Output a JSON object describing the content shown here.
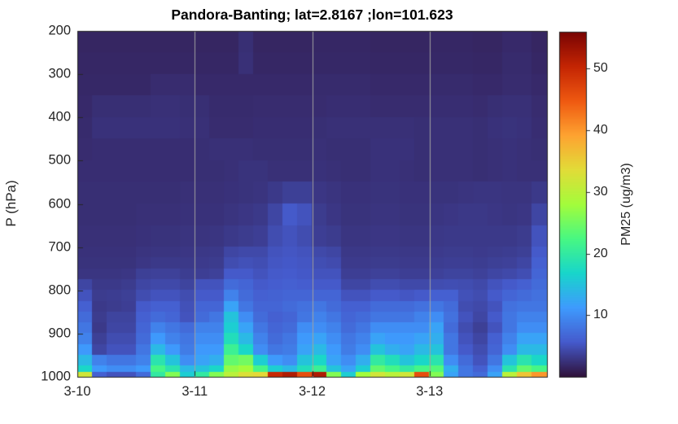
{
  "figure": {
    "background": "#ffffff",
    "text_color": "#262626",
    "axis_color": "#262626",
    "grid_line_color": "#a0a0a0"
  },
  "chart_data": {
    "type": "heatmap",
    "title": "Pandora-Banting; lat=2.8167 ;lon=101.623",
    "xlabel": "",
    "ylabel": "P (hPa)",
    "y_ticks": [
      200,
      300,
      400,
      500,
      600,
      700,
      800,
      900,
      1000
    ],
    "ylim": [
      200,
      1000
    ],
    "y_direction": "pressure-increasing-downward",
    "x_tick_labels": [
      "3-10",
      "3-11",
      "3-12",
      "3-13"
    ],
    "x_domain_days": 4,
    "time_axis": {
      "start": "3-10 00:00",
      "step_hours": 3,
      "columns": 32
    },
    "grid": {
      "vertical_day_lines": [
        "3-11",
        "3-12",
        "3-13"
      ]
    },
    "colormap": "turbo",
    "clim": [
      0,
      56
    ],
    "colorbar": {
      "label": "PM25 (ug/m3)",
      "ticks": [
        10,
        20,
        30,
        40,
        50
      ]
    },
    "pressure_row_bounds": [
      200,
      250,
      300,
      350,
      400,
      450,
      500,
      550,
      600,
      650,
      700,
      725,
      750,
      775,
      800,
      825,
      850,
      875,
      900,
      925,
      950,
      975,
      990,
      1000
    ],
    "values_rows_top_to_bottom": [
      [
        1.5,
        1.5,
        1.5,
        1.5,
        1.5,
        1.5,
        1.5,
        1.5,
        1.5,
        1.5,
        1.5,
        2.2,
        1.5,
        1.5,
        1.5,
        1.5,
        1.6,
        1.6,
        1.6,
        1.6,
        1.5,
        1.5,
        1.5,
        1.5,
        1.6,
        1.6,
        1.6,
        1.5,
        1.5,
        1.8,
        1.8,
        1.5
      ],
      [
        1.6,
        1.6,
        1.6,
        1.6,
        1.6,
        1.6,
        1.6,
        1.6,
        1.6,
        1.6,
        1.6,
        2.3,
        1.6,
        1.6,
        1.6,
        1.6,
        1.7,
        1.7,
        1.7,
        1.7,
        1.6,
        1.6,
        1.6,
        1.6,
        1.7,
        1.7,
        1.7,
        1.6,
        1.6,
        1.9,
        1.9,
        1.6
      ],
      [
        1.7,
        1.7,
        1.7,
        1.7,
        1.7,
        2.0,
        2.0,
        2.0,
        1.8,
        1.8,
        1.8,
        1.8,
        1.8,
        1.8,
        1.8,
        1.8,
        1.9,
        1.9,
        1.9,
        1.9,
        1.8,
        1.8,
        1.8,
        1.8,
        1.9,
        1.9,
        1.9,
        1.8,
        1.8,
        2.0,
        2.0,
        1.8
      ],
      [
        1.8,
        2.2,
        2.2,
        2.2,
        2.2,
        2.3,
        2.3,
        2.2,
        2.2,
        1.9,
        1.9,
        1.9,
        2.0,
        2.0,
        2.0,
        2.0,
        2.0,
        2.1,
        2.1,
        2.1,
        2.0,
        2.0,
        2.0,
        2.0,
        2.1,
        2.1,
        2.1,
        2.0,
        2.2,
        2.3,
        2.3,
        2.0
      ],
      [
        1.9,
        2.4,
        2.4,
        2.4,
        2.4,
        2.4,
        2.4,
        2.3,
        2.3,
        2.0,
        2.0,
        2.0,
        2.1,
        2.1,
        2.1,
        2.1,
        2.2,
        2.3,
        2.3,
        2.3,
        2.3,
        2.3,
        2.3,
        2.2,
        2.3,
        2.3,
        2.3,
        2.2,
        2.4,
        2.5,
        2.4,
        2.1
      ],
      [
        2.0,
        2.1,
        2.1,
        2.1,
        2.1,
        2.1,
        2.1,
        2.1,
        2.2,
        2.3,
        2.3,
        2.3,
        2.2,
        2.2,
        2.2,
        2.2,
        2.3,
        2.2,
        2.2,
        2.2,
        2.4,
        2.4,
        2.4,
        2.2,
        2.3,
        2.3,
        2.3,
        2.2,
        2.3,
        2.4,
        2.3,
        2.2
      ],
      [
        2.1,
        2.1,
        2.1,
        2.1,
        2.1,
        2.1,
        2.1,
        2.1,
        2.2,
        2.2,
        2.3,
        2.5,
        2.5,
        2.3,
        2.3,
        2.3,
        2.4,
        2.3,
        2.2,
        2.2,
        2.4,
        2.4,
        2.3,
        2.2,
        2.3,
        2.3,
        2.3,
        2.2,
        2.3,
        2.4,
        2.3,
        2.3
      ],
      [
        2.2,
        2.2,
        2.2,
        2.2,
        2.2,
        2.2,
        2.2,
        2.3,
        2.3,
        2.3,
        2.4,
        2.5,
        2.6,
        3.0,
        3.5,
        3.5,
        2.8,
        2.6,
        2.4,
        2.4,
        2.5,
        2.5,
        2.4,
        2.4,
        2.5,
        2.5,
        2.6,
        2.7,
        2.7,
        2.6,
        2.6,
        3.0
      ],
      [
        2.2,
        2.2,
        2.2,
        2.2,
        2.3,
        2.3,
        2.3,
        2.4,
        2.4,
        2.4,
        2.6,
        2.8,
        3.0,
        4.0,
        5.5,
        5.0,
        3.2,
        2.8,
        2.5,
        2.5,
        2.6,
        2.6,
        2.5,
        2.5,
        2.7,
        2.8,
        2.9,
        2.9,
        2.8,
        2.7,
        2.8,
        4.0
      ],
      [
        2.3,
        2.3,
        2.3,
        2.3,
        2.4,
        2.5,
        2.5,
        2.6,
        2.6,
        2.7,
        3.0,
        3.2,
        3.4,
        4.5,
        5.0,
        4.5,
        3.4,
        3.2,
        2.7,
        2.7,
        2.8,
        2.8,
        2.7,
        2.7,
        2.9,
        3.0,
        3.0,
        3.0,
        3.0,
        3.0,
        3.2,
        5.0
      ],
      [
        2.4,
        2.4,
        2.4,
        2.4,
        2.6,
        2.7,
        2.7,
        2.8,
        2.9,
        3.0,
        4.0,
        4.2,
        4.2,
        5.0,
        5.2,
        5.0,
        4.2,
        4.0,
        2.9,
        2.9,
        3.0,
        3.0,
        2.9,
        2.9,
        3.1,
        3.2,
        3.2,
        3.1,
        3.2,
        3.3,
        3.5,
        5.5
      ],
      [
        2.5,
        2.5,
        2.5,
        2.5,
        2.8,
        3.0,
        3.0,
        3.0,
        3.1,
        3.2,
        4.5,
        4.8,
        4.6,
        5.2,
        5.4,
        5.2,
        4.6,
        4.4,
        3.1,
        3.1,
        3.2,
        3.2,
        3.1,
        3.1,
        3.3,
        3.4,
        3.4,
        3.3,
        3.5,
        3.6,
        4.0,
        6.0
      ],
      [
        2.7,
        2.7,
        2.7,
        2.8,
        3.5,
        3.6,
        3.6,
        3.3,
        3.4,
        3.6,
        5.5,
        5.5,
        5.0,
        5.5,
        5.6,
        5.4,
        5.0,
        5.0,
        3.4,
        3.4,
        3.6,
        3.6,
        3.4,
        3.4,
        3.6,
        3.8,
        3.8,
        3.6,
        4.0,
        4.2,
        4.6,
        6.5
      ],
      [
        4.0,
        3.0,
        3.0,
        3.2,
        4.0,
        4.2,
        4.2,
        3.8,
        5.0,
        5.0,
        7.0,
        6.5,
        5.5,
        5.8,
        6.0,
        5.8,
        5.5,
        5.5,
        4.0,
        4.0,
        4.5,
        4.5,
        4.2,
        4.2,
        4.5,
        4.6,
        4.5,
        4.2,
        5.0,
        5.5,
        6.0,
        7.0
      ],
      [
        5.0,
        3.2,
        3.3,
        3.5,
        4.5,
        5.0,
        5.0,
        4.5,
        5.5,
        5.5,
        9.0,
        7.0,
        6.0,
        6.2,
        6.5,
        6.5,
        6.5,
        6.5,
        5.0,
        5.0,
        5.5,
        5.5,
        5.2,
        5.5,
        6.0,
        6.0,
        4.8,
        4.5,
        5.5,
        6.5,
        7.0,
        7.5
      ],
      [
        6.0,
        3.0,
        3.2,
        3.4,
        5.5,
        6.0,
        6.0,
        4.8,
        6.5,
        6.5,
        12,
        8.0,
        6.5,
        6.5,
        7.0,
        7.5,
        8.0,
        7.0,
        6.0,
        6.0,
        7.0,
        7.0,
        7.0,
        7.5,
        8.0,
        7.0,
        4.5,
        4.2,
        5.0,
        7.5,
        8.0,
        8.0
      ],
      [
        7.0,
        3.2,
        3.8,
        3.8,
        6.0,
        7.0,
        6.5,
        5.0,
        7.0,
        8.0,
        15,
        10,
        7.0,
        6.0,
        6.5,
        8.0,
        9.0,
        8.0,
        6.5,
        7.0,
        8.0,
        8.0,
        8.0,
        9.0,
        10,
        7.5,
        5.0,
        4.0,
        5.5,
        8.0,
        9.0,
        9.0
      ],
      [
        8.0,
        3.0,
        4.0,
        4.0,
        6.5,
        9.0,
        8.0,
        7.0,
        9.0,
        9.0,
        16,
        12,
        8.0,
        6.5,
        7.0,
        10,
        10,
        9.0,
        7.0,
        8.0,
        10,
        10,
        10,
        10,
        12,
        7.0,
        4.5,
        3.5,
        5.0,
        8.0,
        10,
        10
      ],
      [
        9.0,
        3.5,
        4.5,
        4.5,
        7.0,
        11,
        9.0,
        8.0,
        10,
        10,
        18,
        14,
        9.0,
        7.0,
        8.0,
        11,
        12,
        10,
        8.0,
        9.0,
        12,
        11,
        11,
        12,
        13,
        8.0,
        5.0,
        4.0,
        6.0,
        9.0,
        12,
        12
      ],
      [
        11,
        4.0,
        5.0,
        5.0,
        8.0,
        14,
        11,
        8.5,
        11,
        11,
        21,
        17,
        10,
        8.0,
        8.5,
        12,
        14,
        11,
        8.5,
        10,
        15,
        13,
        12,
        14,
        15,
        8.0,
        5.5,
        4.5,
        6.5,
        10,
        14,
        14
      ],
      [
        14,
        9.0,
        8.0,
        8.0,
        9.0,
        19,
        15,
        10,
        12,
        13,
        24,
        25,
        16,
        11,
        10,
        15,
        17,
        12,
        10,
        13,
        20,
        18,
        15,
        17,
        19,
        10,
        7.0,
        5.0,
        8.0,
        15,
        19,
        17
      ],
      [
        17,
        11,
        10,
        10,
        11,
        22,
        19,
        14,
        15,
        17,
        27,
        28,
        22,
        16,
        14,
        18,
        21,
        15,
        12,
        16,
        24,
        22,
        20,
        22,
        23,
        13,
        8.0,
        6.0,
        10,
        19,
        24,
        22
      ],
      [
        32,
        6.0,
        5.0,
        5.0,
        7.0,
        20,
        26,
        16,
        20,
        26,
        30,
        33,
        34,
        50,
        52,
        46,
        52,
        26,
        16,
        28,
        32,
        30,
        32,
        46,
        26,
        12,
        8.0,
        7.0,
        12,
        30,
        36,
        40
      ]
    ]
  }
}
